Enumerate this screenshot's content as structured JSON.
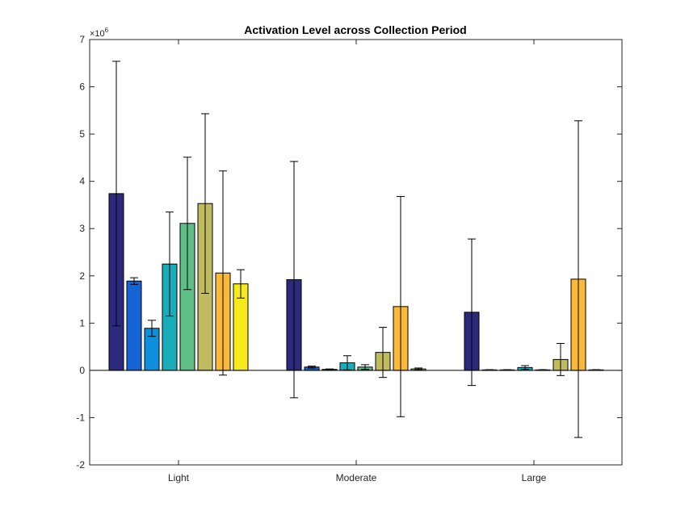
{
  "chart_data": {
    "type": "bar",
    "title": "Activation Level across Collection Period",
    "xlabel": "",
    "ylabel": "",
    "y_scale_base": "×10",
    "y_scale_exponent": "6",
    "ylim": [
      -2,
      7
    ],
    "yticks": [
      "-2",
      "-1",
      "0",
      "1",
      "2",
      "3",
      "4",
      "5",
      "6",
      "7"
    ],
    "categories": [
      "Light",
      "Moderate",
      "Large"
    ],
    "colors": [
      "#2d2a7e",
      "#1663d6",
      "#0d8fdd",
      "#18adb8",
      "#5ebf86",
      "#c1bb5f",
      "#fbb93a",
      "#f7ea1a"
    ],
    "series": [
      {
        "values": [
          3.74,
          1.92,
          1.23
        ],
        "errors": [
          2.8,
          2.5,
          1.55
        ]
      },
      {
        "values": [
          1.89,
          0.07,
          0.01
        ],
        "errors": [
          0.07,
          0.02,
          0.005
        ]
      },
      {
        "values": [
          0.89,
          0.02,
          0.01
        ],
        "errors": [
          0.17,
          0.01,
          0.005
        ]
      },
      {
        "values": [
          2.25,
          0.16,
          0.06
        ],
        "errors": [
          1.1,
          0.15,
          0.04
        ]
      },
      {
        "values": [
          3.11,
          0.07,
          0.01
        ],
        "errors": [
          1.4,
          0.05,
          0.005
        ]
      },
      {
        "values": [
          3.53,
          0.38,
          0.23
        ],
        "errors": [
          1.9,
          0.53,
          0.34
        ]
      },
      {
        "values": [
          2.06,
          1.35,
          1.93
        ],
        "errors": [
          2.16,
          2.33,
          3.35
        ]
      },
      {
        "values": [
          1.83,
          0.03,
          0.01
        ],
        "errors": [
          0.3,
          0.02,
          0.005
        ]
      }
    ],
    "grid": false,
    "legend": "none"
  }
}
